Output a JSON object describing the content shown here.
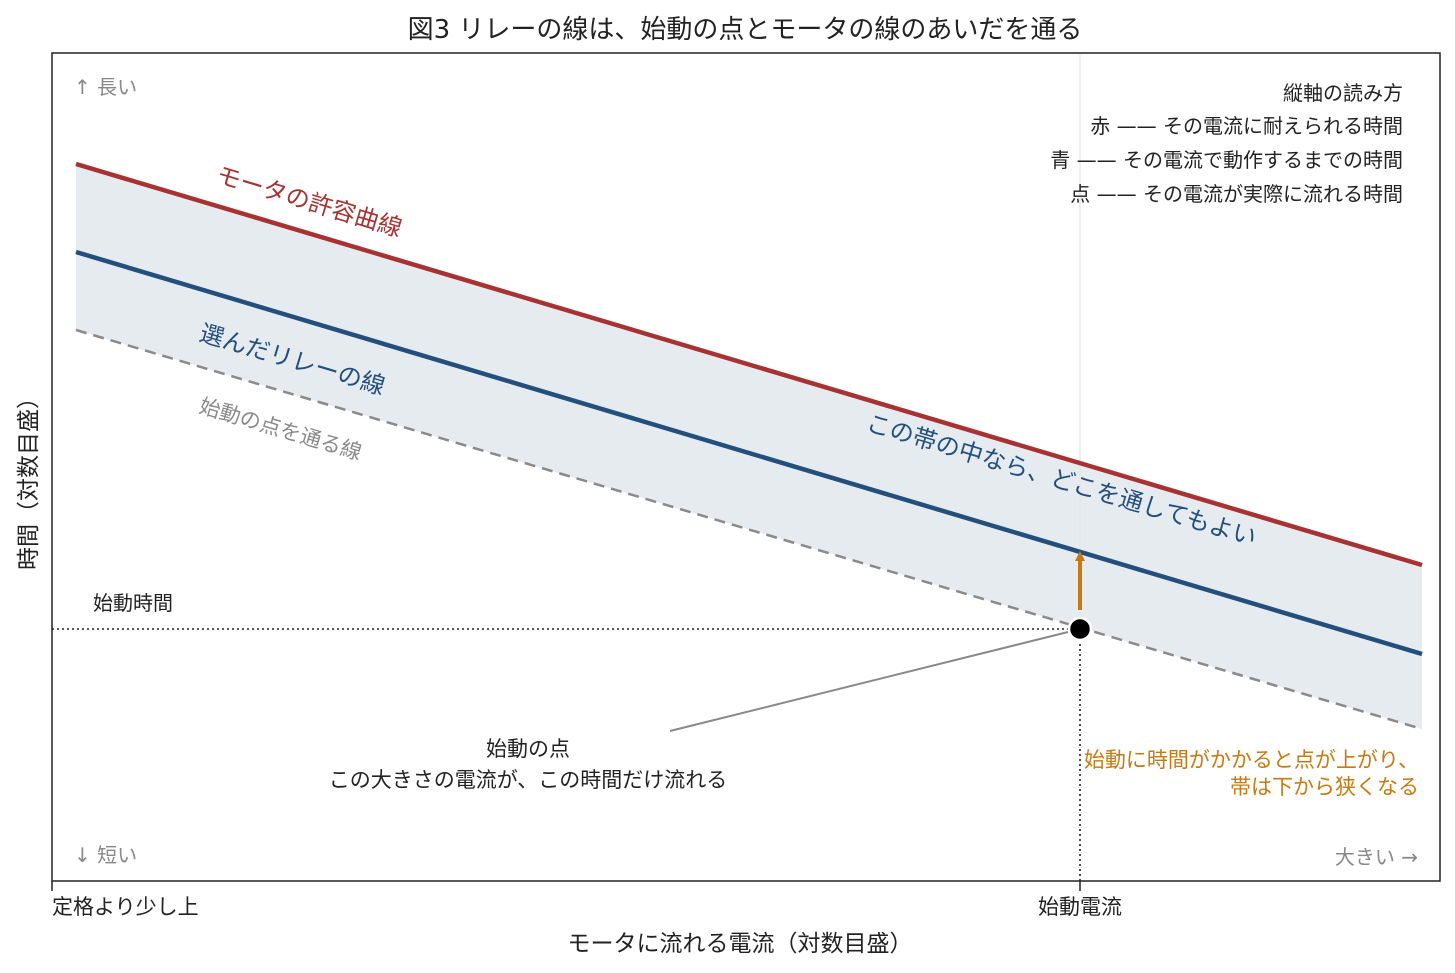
{
  "title": "図3 リレーの線は、始動の点とモータの線のあいだを通る",
  "axes": {
    "x_label": "モータに流れる電流（対数目盛）",
    "y_label": "時間（対数目盛）",
    "x_tick_left": "定格より少し上",
    "x_tick_start": "始動電流",
    "y_tick_start": "始動時間",
    "y_long": "↑ 長い",
    "y_short": "↓ 短い",
    "x_large": "大きい →"
  },
  "legend": {
    "title": "縦軸の読み方",
    "items": [
      {
        "key": "赤",
        "dash": "——",
        "text": "その電流に耐えられる時間"
      },
      {
        "key": "青",
        "dash": "——",
        "text": "その電流で動作するまでの時間"
      },
      {
        "key": "点",
        "dash": "——",
        "text": "その電流が実際に流れる時間"
      }
    ]
  },
  "curves": {
    "motor_label": "モータの許容曲線",
    "relay_label": "選んだリレーの線",
    "start_line_label": "始動の点を通る線",
    "band_label": "この帯の中なら、どこを通してもよい"
  },
  "annotations": {
    "point_title": "始動の点",
    "point_text": "この大きさの電流が、この時間だけ流れる",
    "shift_line1": "始動に時間がかかると点が上がり、",
    "shift_line2": "帯は下から狭くなる"
  },
  "colors": {
    "motor": "#a83232",
    "relay": "#234f7d",
    "start_line": "#8a8a8a",
    "band": "#e6ebf0",
    "arrow": "#c87a10",
    "text": "#222222",
    "muted": "#888888"
  }
}
